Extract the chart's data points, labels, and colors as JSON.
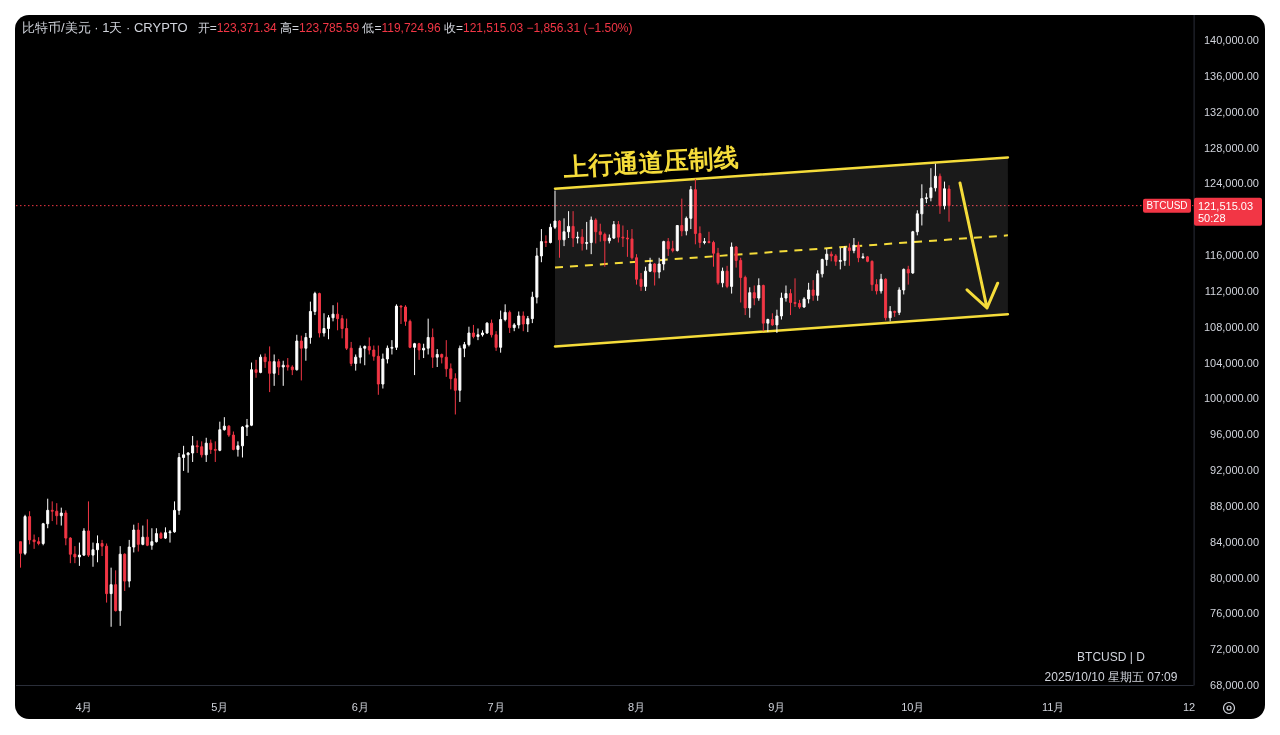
{
  "chart_data": {
    "type": "candlestick",
    "title": "比特币/美元 · 1天 · CRYPTO",
    "subtitle": "开=123,371.34 高=123,785.59 低=119,724.96 收=121,515.03 −1,856.31 (−1.50%)",
    "x": [
      "2025-03-18",
      "2025-03-19",
      "2025-03-20",
      "2025-03-21",
      "2025-03-22",
      "2025-03-23",
      "2025-03-24",
      "2025-03-25",
      "2025-03-26",
      "2025-03-27",
      "2025-03-28",
      "2025-03-29",
      "2025-03-30",
      "2025-03-31",
      "2025-04-01",
      "2025-04-02",
      "2025-04-03",
      "2025-04-04",
      "2025-04-05",
      "2025-04-06",
      "2025-04-07",
      "2025-04-08",
      "2025-04-09",
      "2025-04-10",
      "2025-04-11",
      "2025-04-12",
      "2025-04-13",
      "2025-04-14",
      "2025-04-15",
      "2025-04-16",
      "2025-04-17",
      "2025-04-18",
      "2025-04-19",
      "2025-04-20",
      "2025-04-21",
      "2025-04-22",
      "2025-04-23",
      "2025-04-24",
      "2025-04-25",
      "2025-04-26",
      "2025-04-27",
      "2025-04-28",
      "2025-04-29",
      "2025-04-30",
      "2025-05-01",
      "2025-05-02",
      "2025-05-03",
      "2025-05-04",
      "2025-05-05",
      "2025-05-06",
      "2025-05-07",
      "2025-05-08",
      "2025-05-09",
      "2025-05-10",
      "2025-05-11",
      "2025-05-12",
      "2025-05-13",
      "2025-05-14",
      "2025-05-15",
      "2025-05-16",
      "2025-05-17",
      "2025-05-18",
      "2025-05-19",
      "2025-05-20",
      "2025-05-21",
      "2025-05-22",
      "2025-05-23",
      "2025-05-24",
      "2025-05-25",
      "2025-05-26",
      "2025-05-27",
      "2025-05-28",
      "2025-05-29",
      "2025-05-30",
      "2025-05-31",
      "2025-06-01",
      "2025-06-02",
      "2025-06-03",
      "2025-06-04",
      "2025-06-05",
      "2025-06-06",
      "2025-06-07",
      "2025-06-08",
      "2025-06-09",
      "2025-06-10",
      "2025-06-11",
      "2025-06-12",
      "2025-06-13",
      "2025-06-14",
      "2025-06-15",
      "2025-06-16",
      "2025-06-17",
      "2025-06-18",
      "2025-06-19",
      "2025-06-20",
      "2025-06-21",
      "2025-06-22",
      "2025-06-23",
      "2025-06-24",
      "2025-06-25",
      "2025-06-26",
      "2025-06-27",
      "2025-06-28",
      "2025-06-29",
      "2025-06-30",
      "2025-07-01",
      "2025-07-02",
      "2025-07-03",
      "2025-07-04",
      "2025-07-05",
      "2025-07-06",
      "2025-07-07",
      "2025-07-08",
      "2025-07-09",
      "2025-07-10",
      "2025-07-11",
      "2025-07-12",
      "2025-07-13",
      "2025-07-14",
      "2025-07-15",
      "2025-07-16",
      "2025-07-17",
      "2025-07-18",
      "2025-07-19",
      "2025-07-20",
      "2025-07-21",
      "2025-07-22",
      "2025-07-23",
      "2025-07-24",
      "2025-07-25",
      "2025-07-26",
      "2025-07-27",
      "2025-07-28",
      "2025-07-29",
      "2025-07-30",
      "2025-07-31",
      "2025-08-01",
      "2025-08-02",
      "2025-08-03",
      "2025-08-04",
      "2025-08-05",
      "2025-08-06",
      "2025-08-07",
      "2025-08-08",
      "2025-08-09",
      "2025-08-10",
      "2025-08-11",
      "2025-08-12",
      "2025-08-13",
      "2025-08-14",
      "2025-08-15",
      "2025-08-16",
      "2025-08-17",
      "2025-08-18",
      "2025-08-19",
      "2025-08-20",
      "2025-08-21",
      "2025-08-22",
      "2025-08-23",
      "2025-08-24",
      "2025-08-25",
      "2025-08-26",
      "2025-08-27",
      "2025-08-28",
      "2025-08-29",
      "2025-08-30",
      "2025-08-31",
      "2025-09-01",
      "2025-09-02",
      "2025-09-03",
      "2025-09-04",
      "2025-09-05",
      "2025-09-06",
      "2025-09-07",
      "2025-09-08",
      "2025-09-09",
      "2025-09-10",
      "2025-09-11",
      "2025-09-12",
      "2025-09-13",
      "2025-09-14",
      "2025-09-15",
      "2025-09-16",
      "2025-09-17",
      "2025-09-18",
      "2025-09-19",
      "2025-09-20",
      "2025-09-21",
      "2025-09-22",
      "2025-09-23",
      "2025-09-24",
      "2025-09-25",
      "2025-09-26",
      "2025-09-27",
      "2025-09-28",
      "2025-09-29",
      "2025-09-30",
      "2025-10-01",
      "2025-10-02",
      "2025-10-03",
      "2025-10-04",
      "2025-10-05",
      "2025-10-06",
      "2025-10-07",
      "2025-10-08",
      "2025-10-09"
    ],
    "ohlc": [
      [
        84000,
        84000,
        81100,
        82700
      ],
      [
        82700,
        87000,
        82500,
        86800
      ],
      [
        86800,
        87400,
        83700,
        84200
      ],
      [
        84200,
        84800,
        83200,
        84000
      ],
      [
        84000,
        84500,
        83600,
        83800
      ],
      [
        83800,
        86100,
        83600,
        86000
      ],
      [
        86000,
        88800,
        85500,
        87500
      ],
      [
        87500,
        88500,
        86300,
        87400
      ],
      [
        87400,
        88300,
        85900,
        86900
      ],
      [
        86900,
        87800,
        85800,
        87200
      ],
      [
        87200,
        87500,
        83600,
        84400
      ],
      [
        84400,
        84500,
        81600,
        82600
      ],
      [
        82600,
        83500,
        81600,
        82300
      ],
      [
        82300,
        83900,
        81300,
        82500
      ],
      [
        82500,
        85500,
        82400,
        85200
      ],
      [
        85200,
        88500,
        82300,
        82500
      ],
      [
        82500,
        83900,
        81200,
        83100
      ],
      [
        83100,
        84700,
        81700,
        83800
      ],
      [
        83800,
        84200,
        82400,
        83500
      ],
      [
        83500,
        83800,
        77200,
        78200
      ],
      [
        78200,
        81100,
        74500,
        79200
      ],
      [
        79200,
        80800,
        76200,
        76300
      ],
      [
        76300,
        83500,
        74600,
        82600
      ],
      [
        82600,
        82700,
        78500,
        79600
      ],
      [
        79600,
        84200,
        78900,
        83400
      ],
      [
        83400,
        85900,
        82800,
        85300
      ],
      [
        85300,
        86100,
        82900,
        83700
      ],
      [
        83700,
        85800,
        83600,
        84500
      ],
      [
        84500,
        86500,
        83500,
        83600
      ],
      [
        83600,
        85500,
        83100,
        84000
      ],
      [
        84000,
        85500,
        83900,
        84900
      ],
      [
        84900,
        85100,
        84300,
        84400
      ],
      [
        84400,
        85600,
        84300,
        85000
      ],
      [
        85000,
        85300,
        83900,
        85100
      ],
      [
        85100,
        88500,
        85000,
        87500
      ],
      [
        87500,
        93900,
        87000,
        93400
      ],
      [
        93400,
        94700,
        91900,
        93700
      ],
      [
        93700,
        94000,
        91700,
        93900
      ],
      [
        93900,
        95800,
        92900,
        94700
      ],
      [
        94700,
        95300,
        93900,
        94600
      ],
      [
        94600,
        95200,
        93400,
        93700
      ],
      [
        93700,
        95600,
        92900,
        95000
      ],
      [
        95000,
        95400,
        93800,
        94300
      ],
      [
        94300,
        95200,
        92900,
        94200
      ],
      [
        94200,
        97400,
        94100,
        96500
      ],
      [
        96500,
        97900,
        96400,
        96900
      ],
      [
        96900,
        97000,
        95700,
        95900
      ],
      [
        95900,
        96300,
        94200,
        94300
      ],
      [
        94300,
        95200,
        93500,
        94700
      ],
      [
        94700,
        96900,
        93400,
        96800
      ],
      [
        96800,
        97700,
        95800,
        97000
      ],
      [
        97000,
        104000,
        96900,
        103200
      ],
      [
        103200,
        104300,
        102300,
        102900
      ],
      [
        102900,
        104900,
        102800,
        104600
      ],
      [
        104600,
        105000,
        103400,
        104100
      ],
      [
        104100,
        105800,
        100700,
        102800
      ],
      [
        102800,
        104900,
        101400,
        104100
      ],
      [
        104100,
        104400,
        102600,
        103500
      ],
      [
        103500,
        104200,
        101400,
        103700
      ],
      [
        103700,
        104500,
        103100,
        103500
      ],
      [
        103500,
        103700,
        102600,
        103200
      ],
      [
        103200,
        107100,
        103100,
        106400
      ],
      [
        106400,
        107000,
        102000,
        105600
      ],
      [
        105600,
        107300,
        104200,
        106800
      ],
      [
        106800,
        110800,
        106100,
        109700
      ],
      [
        109700,
        111900,
        109300,
        111700
      ],
      [
        111700,
        111800,
        106800,
        107300
      ],
      [
        107300,
        109500,
        106900,
        107800
      ],
      [
        107800,
        109300,
        106600,
        109000
      ],
      [
        109000,
        110400,
        108600,
        109400
      ],
      [
        109400,
        110700,
        107600,
        108900
      ],
      [
        108900,
        109300,
        106700,
        107800
      ],
      [
        107800,
        108900,
        105400,
        105600
      ],
      [
        105600,
        106300,
        103600,
        103900
      ],
      [
        103900,
        104900,
        103100,
        104600
      ],
      [
        104600,
        105900,
        103900,
        105600
      ],
      [
        105600,
        105900,
        103700,
        105800
      ],
      [
        105800,
        106800,
        104900,
        105400
      ],
      [
        105400,
        105900,
        104200,
        104700
      ],
      [
        104700,
        105900,
        100400,
        101600
      ],
      [
        101600,
        105000,
        101100,
        104400
      ],
      [
        104400,
        105900,
        103900,
        105600
      ],
      [
        105600,
        106500,
        104900,
        105700
      ],
      [
        105700,
        110500,
        105400,
        110300
      ],
      [
        110300,
        110400,
        108300,
        110200
      ],
      [
        110200,
        110400,
        108100,
        108600
      ],
      [
        108600,
        108800,
        105600,
        105700
      ],
      [
        105700,
        106200,
        102600,
        106100
      ],
      [
        106100,
        106200,
        104300,
        105400
      ],
      [
        105400,
        106100,
        104500,
        105600
      ],
      [
        105600,
        108900,
        104900,
        106800
      ],
      [
        106800,
        107800,
        103400,
        104600
      ],
      [
        104600,
        105500,
        103500,
        104900
      ],
      [
        104900,
        105000,
        103900,
        104600
      ],
      [
        104600,
        106500,
        102400,
        103300
      ],
      [
        103300,
        103900,
        101000,
        102200
      ],
      [
        102200,
        102800,
        98200,
        100900
      ],
      [
        100900,
        105900,
        99600,
        105600
      ],
      [
        105600,
        106300,
        104600,
        106000
      ],
      [
        106000,
        108000,
        105800,
        107300
      ],
      [
        107300,
        108200,
        106700,
        106900
      ],
      [
        106900,
        107800,
        106500,
        107100
      ],
      [
        107100,
        107600,
        106900,
        107300
      ],
      [
        107300,
        108500,
        107200,
        108400
      ],
      [
        108400,
        108800,
        106800,
        107100
      ],
      [
        107100,
        107500,
        105300,
        105700
      ],
      [
        105700,
        109800,
        105100,
        108800
      ],
      [
        108800,
        110500,
        108600,
        109600
      ],
      [
        109600,
        109800,
        107300,
        107900
      ],
      [
        107900,
        108400,
        107500,
        108200
      ],
      [
        108200,
        109700,
        107800,
        109200
      ],
      [
        109200,
        109700,
        107500,
        108300
      ],
      [
        108300,
        109200,
        107400,
        108900
      ],
      [
        108900,
        111900,
        108400,
        111300
      ],
      [
        111300,
        116800,
        110600,
        115900
      ],
      [
        115900,
        118900,
        115200,
        117500
      ],
      [
        117500,
        118200,
        116900,
        117400
      ],
      [
        117400,
        119500,
        117300,
        119100
      ],
      [
        119100,
        123200,
        118900,
        119800
      ],
      [
        119800,
        119900,
        115700,
        117700
      ],
      [
        117700,
        120100,
        117000,
        118600
      ],
      [
        118600,
        120900,
        117900,
        119200
      ],
      [
        119200,
        120900,
        116900,
        117900
      ],
      [
        117900,
        118600,
        117300,
        118000
      ],
      [
        118000,
        118900,
        116500,
        117300
      ],
      [
        117300,
        119700,
        116600,
        117400
      ],
      [
        117400,
        120300,
        116100,
        119900
      ],
      [
        119900,
        120100,
        117300,
        118600
      ],
      [
        118600,
        119500,
        117500,
        118300
      ],
      [
        118300,
        118500,
        114700,
        117600
      ],
      [
        117600,
        118300,
        117300,
        117900
      ],
      [
        117900,
        119800,
        117800,
        119400
      ],
      [
        119400,
        119800,
        117400,
        118000
      ],
      [
        118000,
        119300,
        116900,
        117900
      ],
      [
        117900,
        118800,
        115800,
        117800
      ],
      [
        117800,
        118900,
        115500,
        115700
      ],
      [
        115700,
        116100,
        112700,
        113300
      ],
      [
        113300,
        114000,
        112000,
        112500
      ],
      [
        112500,
        114700,
        112000,
        114200
      ],
      [
        114200,
        115700,
        114100,
        115000
      ],
      [
        115000,
        115100,
        112600,
        114100
      ],
      [
        114100,
        115700,
        113400,
        115000
      ],
      [
        115000,
        117600,
        114300,
        117500
      ],
      [
        117500,
        117900,
        115900,
        116700
      ],
      [
        116700,
        117600,
        116300,
        116500
      ],
      [
        116500,
        119300,
        116400,
        119300
      ],
      [
        119300,
        122300,
        118100,
        118700
      ],
      [
        118700,
        120300,
        118200,
        120100
      ],
      [
        120100,
        123700,
        118900,
        123300
      ],
      [
        123300,
        124500,
        117200,
        118400
      ],
      [
        118400,
        119200,
        116800,
        117400
      ],
      [
        117400,
        117900,
        117200,
        117500
      ],
      [
        117500,
        118600,
        117300,
        117400
      ],
      [
        117400,
        117600,
        114700,
        116200
      ],
      [
        116200,
        116800,
        112700,
        112900
      ],
      [
        112900,
        114600,
        112400,
        114200
      ],
      [
        114200,
        114800,
        112300,
        112500
      ],
      [
        112500,
        117400,
        111700,
        116900
      ],
      [
        116900,
        117000,
        114600,
        115400
      ],
      [
        115400,
        115700,
        110700,
        113500
      ],
      [
        113500,
        113700,
        109300,
        110100
      ],
      [
        110100,
        112400,
        109000,
        111800
      ],
      [
        111800,
        112600,
        110400,
        111200
      ],
      [
        111200,
        113400,
        110900,
        112600
      ],
      [
        112600,
        112700,
        107500,
        108400
      ],
      [
        108400,
        108900,
        107400,
        108800
      ],
      [
        108800,
        109500,
        108100,
        108200
      ],
      [
        108200,
        109900,
        107300,
        109200
      ],
      [
        109200,
        111800,
        108800,
        111200
      ],
      [
        111200,
        112600,
        110800,
        111700
      ],
      [
        111700,
        112200,
        109300,
        110700
      ],
      [
        110700,
        113400,
        110200,
        110600
      ],
      [
        110600,
        111000,
        110000,
        110200
      ],
      [
        110200,
        111300,
        110100,
        111100
      ],
      [
        111100,
        112900,
        110600,
        112100
      ],
      [
        112100,
        113200,
        110900,
        111500
      ],
      [
        111500,
        114300,
        110900,
        113900
      ],
      [
        113900,
        115600,
        113500,
        115500
      ],
      [
        115500,
        116700,
        114800,
        116100
      ],
      [
        116100,
        116400,
        115300,
        115900
      ],
      [
        115900,
        116100,
        114800,
        115300
      ],
      [
        115300,
        116800,
        114400,
        115400
      ],
      [
        115400,
        117000,
        114800,
        116800
      ],
      [
        116800,
        117300,
        114800,
        116500
      ],
      [
        116500,
        117900,
        116200,
        117100
      ],
      [
        117100,
        117500,
        115200,
        115700
      ],
      [
        115700,
        116200,
        115600,
        115800
      ],
      [
        115800,
        115900,
        115200,
        115300
      ],
      [
        115300,
        115400,
        112000,
        112700
      ],
      [
        112700,
        113300,
        111600,
        112000
      ],
      [
        112000,
        113900,
        111700,
        113300
      ],
      [
        113300,
        113400,
        108700,
        109000
      ],
      [
        109000,
        110300,
        108600,
        109700
      ],
      [
        109700,
        109800,
        109100,
        109600
      ],
      [
        109600,
        112400,
        109300,
        112100
      ],
      [
        112100,
        114500,
        111600,
        114400
      ],
      [
        114400,
        114800,
        112700,
        114000
      ],
      [
        114000,
        118700,
        113900,
        118600
      ],
      [
        118600,
        121000,
        118200,
        120600
      ],
      [
        120600,
        123900,
        119300,
        122300
      ],
      [
        122300,
        122900,
        121800,
        122400
      ],
      [
        122400,
        125700,
        122000,
        123500
      ],
      [
        123500,
        126200,
        123100,
        124800
      ],
      [
        124800,
        125100,
        120600,
        121500
      ],
      [
        121500,
        124200,
        121100,
        123400
      ],
      [
        123371.34,
        123785.59,
        119724.96,
        121515.03
      ]
    ],
    "colors": [
      "#f23645",
      "#ffffff",
      "#f23645",
      "#f23645",
      "#f23645",
      "#ffffff",
      "#ffffff",
      "#f23645",
      "#f23645",
      "#ffffff",
      "#f23645",
      "#f23645",
      "#f23645",
      "#ffffff",
      "#ffffff",
      "#f23645",
      "#ffffff",
      "#ffffff",
      "#f23645",
      "#f23645",
      "#ffffff",
      "#f23645",
      "#ffffff",
      "#f23645",
      "#ffffff",
      "#ffffff",
      "#f23645",
      "#ffffff",
      "#f23645",
      "#ffffff",
      "#ffffff",
      "#f23645",
      "#ffffff",
      "#ffffff",
      "#ffffff",
      "#ffffff",
      "#ffffff",
      "#ffffff",
      "#ffffff",
      "#f23645",
      "#f23645",
      "#ffffff",
      "#f23645",
      "#f23645",
      "#ffffff",
      "#ffffff",
      "#f23645",
      "#f23645",
      "#ffffff",
      "#ffffff",
      "#ffffff",
      "#ffffff",
      "#f23645",
      "#ffffff",
      "#f23645",
      "#f23645",
      "#ffffff",
      "#f23645",
      "#ffffff",
      "#f23645",
      "#f23645",
      "#ffffff",
      "#f23645",
      "#ffffff",
      "#ffffff",
      "#ffffff",
      "#f23645",
      "#ffffff",
      "#ffffff",
      "#ffffff",
      "#f23645",
      "#f23645",
      "#f23645",
      "#f23645",
      "#ffffff",
      "#ffffff",
      "#ffffff",
      "#f23645",
      "#f23645",
      "#f23645",
      "#ffffff",
      "#ffffff",
      "#ffffff",
      "#ffffff",
      "#f23645",
      "#f23645",
      "#f23645",
      "#ffffff",
      "#f23645",
      "#ffffff",
      "#ffffff",
      "#f23645",
      "#ffffff",
      "#f23645",
      "#f23645",
      "#f23645",
      "#f23645",
      "#ffffff",
      "#ffffff",
      "#ffffff",
      "#f23645",
      "#ffffff",
      "#ffffff",
      "#ffffff",
      "#f23645",
      "#f23645",
      "#ffffff",
      "#ffffff",
      "#f23645",
      "#ffffff",
      "#ffffff",
      "#f23645",
      "#ffffff",
      "#ffffff",
      "#ffffff",
      "#ffffff",
      "#f23645",
      "#ffffff",
      "#ffffff",
      "#f23645",
      "#ffffff",
      "#ffffff",
      "#f23645",
      "#ffffff",
      "#f23645",
      "#ffffff",
      "#ffffff",
      "#f23645",
      "#f23645",
      "#f23645",
      "#ffffff",
      "#ffffff",
      "#f23645",
      "#f23645",
      "#f23645",
      "#f23645",
      "#f23645",
      "#f23645",
      "#ffffff",
      "#ffffff",
      "#f23645",
      "#ffffff",
      "#ffffff",
      "#f23645",
      "#f23645",
      "#ffffff",
      "#f23645",
      "#ffffff",
      "#ffffff",
      "#f23645",
      "#f23645",
      "#ffffff",
      "#f23645",
      "#f23645",
      "#f23645",
      "#ffffff",
      "#f23645",
      "#ffffff",
      "#f23645",
      "#f23645",
      "#f23645",
      "#ffffff",
      "#f23645",
      "#ffffff",
      "#f23645",
      "#ffffff",
      "#f23645",
      "#ffffff",
      "#ffffff",
      "#ffffff",
      "#f23645",
      "#f23645",
      "#f23645",
      "#ffffff",
      "#ffffff",
      "#f23645",
      "#ffffff",
      "#ffffff",
      "#ffffff",
      "#f23645",
      "#f23645",
      "#ffffff",
      "#ffffff",
      "#f23645",
      "#ffffff",
      "#f23645",
      "#ffffff",
      "#f23645",
      "#f23645",
      "#f23645",
      "#ffffff",
      "#f23645",
      "#ffffff",
      "#f23645",
      "#ffffff",
      "#ffffff",
      "#f23645",
      "#ffffff",
      "#ffffff",
      "#ffffff",
      "#ffffff",
      "#ffffff",
      "#ffffff",
      "#f23645",
      "#ffffff",
      "#f23645"
    ],
    "series": [
      {
        "type": "line",
        "x": [
          "2025-07-14",
          "2025-10-22"
        ],
        "values": [
          123400,
          126900
        ],
        "color": "#f5dc3a",
        "line_style": "solid"
      },
      {
        "type": "line",
        "x": [
          "2025-07-14",
          "2025-10-22"
        ],
        "values": [
          114600,
          118200
        ],
        "lower": [
          105800,
          109400
        ],
        "upper": [
          123400,
          126900
        ],
        "color": "#f5dc3a",
        "line_style": "dashed"
      },
      {
        "type": "line",
        "x": [
          "2025-07-14",
          "2025-10-22"
        ],
        "values": [
          105800,
          109400
        ],
        "color": "#f5dc3a",
        "line_style": "solid"
      }
    ],
    "ref_lines": [
      {
        "axis": "y",
        "value": 121515.03,
        "label": "121,515.03",
        "color": "#f23645",
        "line_style": "dotted"
      }
    ],
    "annotations": [
      {
        "text": "上行通道压制线",
        "x": "2025-07-16",
        "y": 123500
      },
      "BTCUSD",
      "50:28",
      "BTCUSD | D",
      "2025/10/10 星期五 07:09"
    ],
    "xlim": [
      "2025-03-17",
      "2025-12-02"
    ],
    "xticks": [
      {
        "value": "2025-04-01",
        "label": "4月"
      },
      {
        "value": "2025-05-01",
        "label": "5月"
      },
      {
        "value": "2025-06-01",
        "label": "6月"
      },
      {
        "value": "2025-07-01",
        "label": "7月"
      },
      {
        "value": "2025-08-01",
        "label": "8月"
      },
      {
        "value": "2025-09-01",
        "label": "9月"
      },
      {
        "value": "2025-10-01",
        "label": "10月"
      },
      {
        "value": "2025-11-01",
        "label": "11月"
      },
      {
        "value": "2025-12-01",
        "label": "12"
      }
    ],
    "ylim": [
      68000,
      142800
    ],
    "yticks": [
      {
        "value": 68000,
        "label": "68,000.00"
      },
      {
        "value": 72000,
        "label": "72,000.00"
      },
      {
        "value": 76000,
        "label": "76,000.00"
      },
      {
        "value": 80000,
        "label": "80,000.00"
      },
      {
        "value": 84000,
        "label": "84,000.00"
      },
      {
        "value": 88000,
        "label": "88,000.00"
      },
      {
        "value": 92000,
        "label": "92,000.00"
      },
      {
        "value": 96000,
        "label": "96,000.00"
      },
      {
        "value": 100000,
        "label": "100,000.00"
      },
      {
        "value": 104000,
        "label": "104,000.00"
      },
      {
        "value": 108000,
        "label": "108,000.00"
      },
      {
        "value": 112000,
        "label": "112,000.00"
      },
      {
        "value": 116000,
        "label": "116,000.00"
      },
      {
        "value": 124000,
        "label": "124,000.00"
      },
      {
        "value": 128000,
        "label": "128,000.00"
      },
      {
        "value": 132000,
        "label": "132,000.00"
      },
      {
        "value": 136000,
        "label": "136,000.00"
      },
      {
        "value": 140000,
        "label": "140,000.00"
      }
    ]
  }
}
